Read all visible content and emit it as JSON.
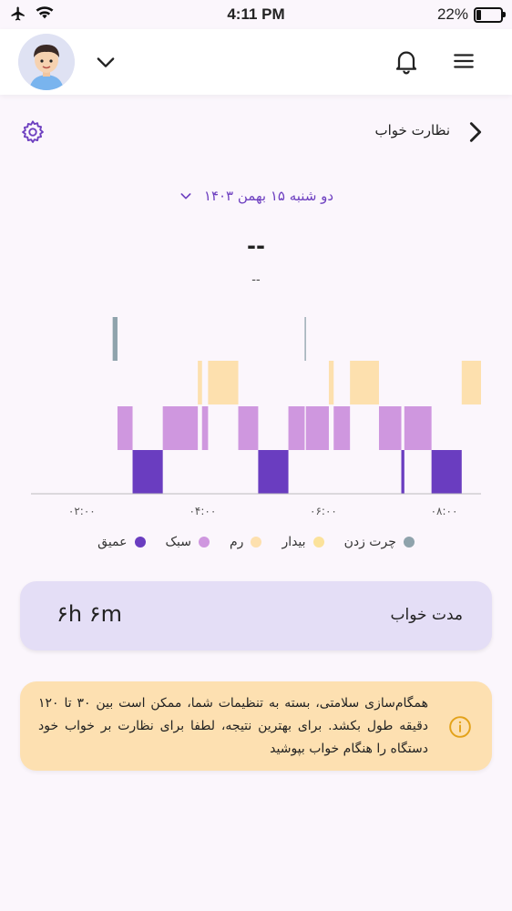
{
  "status_bar": {
    "time": "4:11 PM",
    "battery_text": "22%",
    "battery_level": 0.22,
    "left_icons": [
      "airplane-icon",
      "wifi-icon"
    ]
  },
  "header": {
    "avatar": "avatar",
    "icons": [
      "chevron-down-icon",
      "bell-icon",
      "menu-icon"
    ]
  },
  "page": {
    "title": "نظارت خواب",
    "date_label": "دو شنبه ۱۵ بهمن ۱۴۰۳",
    "big_value": "--",
    "sub_value": "--"
  },
  "colors": {
    "deep": "#6a3dc0",
    "light": "#cf97df",
    "rem": "#fde0ae",
    "awake": "#fbe29b",
    "tap": "#8fa3ac",
    "accent": "#6d3fc0"
  },
  "chart_data": {
    "type": "sleep-stage-timeline",
    "x_ticks": [
      "۰۲:۰۰",
      "۰۴:۰۰",
      "۰۶:۰۰",
      "۰۸:۰۰"
    ],
    "x_unit": "hours after 01:30",
    "x_range": [
      1.52,
      8.52
    ],
    "levels": [
      "tap",
      "rem",
      "light",
      "deep"
    ],
    "segments": [
      {
        "stage": "tap",
        "start": 2.42,
        "end": 2.5
      },
      {
        "stage": "light",
        "start": 2.5,
        "end": 2.75
      },
      {
        "stage": "deep",
        "start": 2.75,
        "end": 3.25
      },
      {
        "stage": "light",
        "start": 3.25,
        "end": 3.83
      },
      {
        "stage": "rem",
        "start": 3.83,
        "end": 3.9
      },
      {
        "stage": "light",
        "start": 3.9,
        "end": 4.0
      },
      {
        "stage": "rem",
        "start": 4.0,
        "end": 4.5
      },
      {
        "stage": "light",
        "start": 4.5,
        "end": 4.83
      },
      {
        "stage": "deep",
        "start": 4.83,
        "end": 5.33
      },
      {
        "stage": "light",
        "start": 5.33,
        "end": 5.6
      },
      {
        "stage": "tap",
        "start": 5.6,
        "end": 5.62
      },
      {
        "stage": "light",
        "start": 5.62,
        "end": 6.0
      },
      {
        "stage": "rem",
        "start": 6.0,
        "end": 6.08
      },
      {
        "stage": "light",
        "start": 6.08,
        "end": 6.35
      },
      {
        "stage": "rem",
        "start": 6.35,
        "end": 6.83
      },
      {
        "stage": "light",
        "start": 6.83,
        "end": 7.2
      },
      {
        "stage": "deep",
        "start": 7.2,
        "end": 7.25
      },
      {
        "stage": "light",
        "start": 7.25,
        "end": 7.7
      },
      {
        "stage": "deep",
        "start": 7.7,
        "end": 8.2
      },
      {
        "stage": "rem",
        "start": 8.2,
        "end": 8.8
      },
      {
        "stage": "light",
        "start": 8.8,
        "end": 9.4
      }
    ]
  },
  "legend": [
    {
      "label": "چرت زدن",
      "color": "#8fa3ac"
    },
    {
      "label": "بیدار",
      "color": "#fbe29b"
    },
    {
      "label": "رم",
      "color": "#fde0ae"
    },
    {
      "label": "سبک",
      "color": "#cf97df"
    },
    {
      "label": "عمیق",
      "color": "#6a3dc0"
    }
  ],
  "duration": {
    "label": "مدت خواب",
    "value": "۶h ۶m"
  },
  "notice": {
    "text": "همگام‌سازی سلامتی، بسته به تنظیمات شما، ممکن است بین ۳۰ تا ۱۲۰ دقیقه طول بکشد. برای بهترین نتیجه، لطفا برای نظارت بر خواب خود دستگاه را هنگام خواب بپوشید"
  }
}
